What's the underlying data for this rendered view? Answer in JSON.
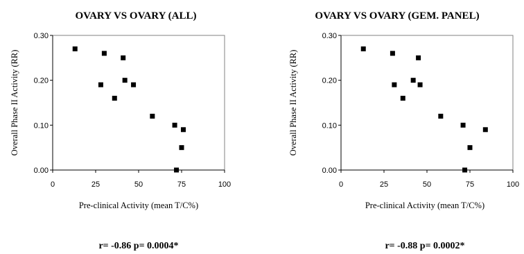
{
  "chart_data": [
    {
      "type": "scatter",
      "title": "OVARY VS OVARY (ALL)",
      "xlabel": "Pre-clinical Activity (mean T/C%)",
      "ylabel": "Overall Phase II Activity (RR)",
      "xlim": [
        0,
        100
      ],
      "ylim": [
        0,
        0.3
      ],
      "x_ticks": [
        "0",
        "25",
        "50",
        "75",
        "100"
      ],
      "y_ticks": [
        "0.00",
        "0.10",
        "0.20",
        "0.30"
      ],
      "grid": false,
      "points": [
        {
          "x": 13,
          "y": 0.27
        },
        {
          "x": 28,
          "y": 0.19
        },
        {
          "x": 30,
          "y": 0.26
        },
        {
          "x": 36,
          "y": 0.16
        },
        {
          "x": 41,
          "y": 0.25
        },
        {
          "x": 42,
          "y": 0.2
        },
        {
          "x": 47,
          "y": 0.19
        },
        {
          "x": 58,
          "y": 0.12
        },
        {
          "x": 71,
          "y": 0.1
        },
        {
          "x": 72,
          "y": 0.0
        },
        {
          "x": 75,
          "y": 0.05
        },
        {
          "x": 76,
          "y": 0.09
        }
      ],
      "stats": "r= -0.86  p= 0.0004*"
    },
    {
      "type": "scatter",
      "title": "OVARY VS OVARY (GEM. PANEL)",
      "xlabel": "Pre-clinical Activity (mean T/C%)",
      "ylabel": "Overall Phase II Activity (RR)",
      "xlim": [
        0,
        100
      ],
      "ylim": [
        0,
        0.3
      ],
      "x_ticks": [
        "0",
        "25",
        "50",
        "75",
        "100"
      ],
      "y_ticks": [
        "0.00",
        "0.10",
        "0.20",
        "0.30"
      ],
      "grid": false,
      "points": [
        {
          "x": 13,
          "y": 0.27
        },
        {
          "x": 30,
          "y": 0.26
        },
        {
          "x": 31,
          "y": 0.19
        },
        {
          "x": 36,
          "y": 0.16
        },
        {
          "x": 42,
          "y": 0.2
        },
        {
          "x": 45,
          "y": 0.25
        },
        {
          "x": 46,
          "y": 0.19
        },
        {
          "x": 58,
          "y": 0.12
        },
        {
          "x": 71,
          "y": 0.1
        },
        {
          "x": 72,
          "y": 0.0
        },
        {
          "x": 75,
          "y": 0.05
        },
        {
          "x": 84,
          "y": 0.09
        }
      ],
      "stats": "r= -0.88  p= 0.0002*"
    }
  ]
}
